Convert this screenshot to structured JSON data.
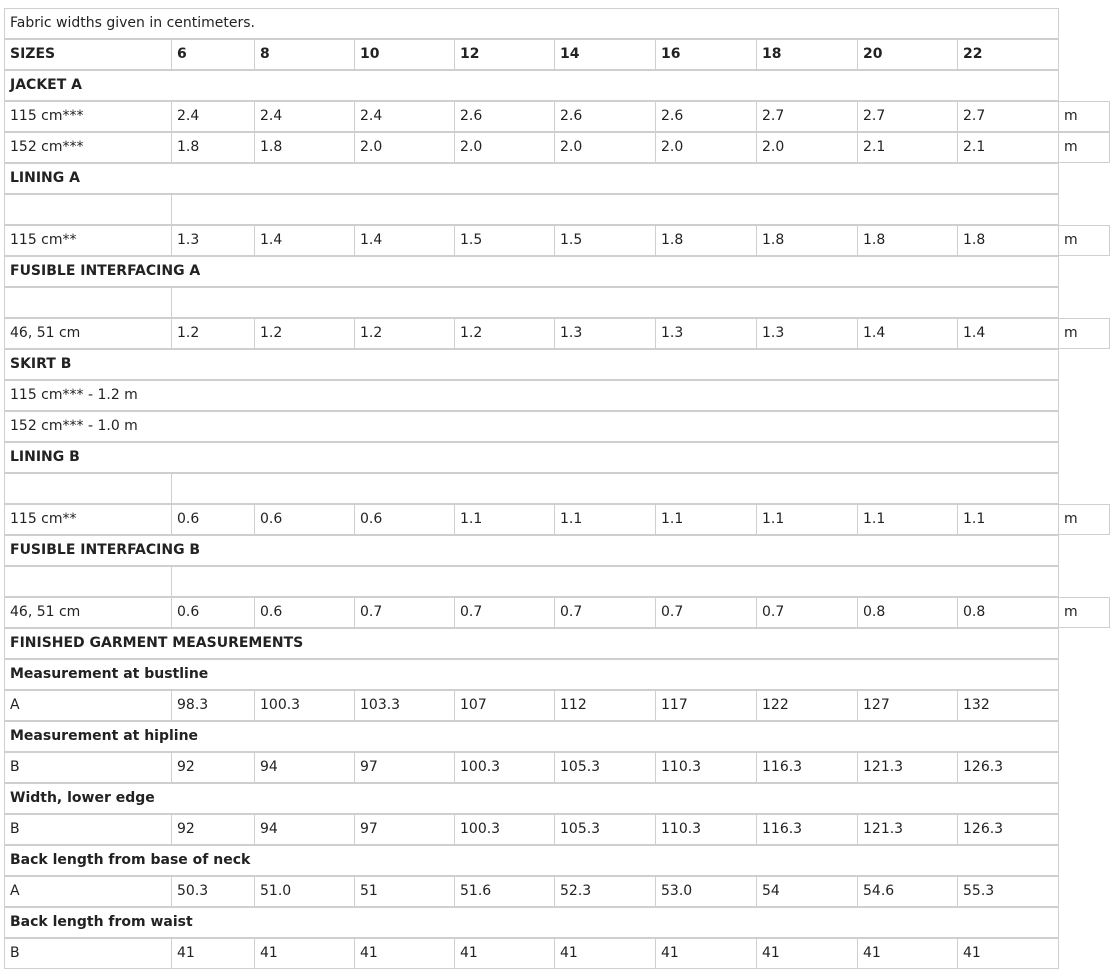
{
  "note": "Fabric widths given in centimeters.",
  "sizes_label": "SIZES",
  "sizes": [
    "6",
    "8",
    "10",
    "12",
    "14",
    "16",
    "18",
    "20",
    "22"
  ],
  "unit": "m",
  "sections": [
    {
      "title": "JACKET A",
      "rows": [
        {
          "label": "115 cm***",
          "values": [
            "2.4",
            "2.4",
            "2.4",
            "2.6",
            "2.6",
            "2.6",
            "2.7",
            "2.7",
            "2.7"
          ]
        },
        {
          "label": "152 cm***",
          "values": [
            "1.8",
            "1.8",
            "2.0",
            "2.0",
            "2.0",
            "2.0",
            "2.0",
            "2.1",
            "2.1"
          ]
        }
      ]
    },
    {
      "title": "LINING A",
      "rows": [
        {
          "label": "115 cm**",
          "values": [
            "1.3",
            "1.4",
            "1.4",
            "1.5",
            "1.5",
            "1.8",
            "1.8",
            "1.8",
            "1.8"
          ]
        }
      ]
    },
    {
      "title": "FUSIBLE INTERFACING A",
      "rows": [
        {
          "label": "46, 51 cm",
          "values": [
            "1.2",
            "1.2",
            "1.2",
            "1.2",
            "1.3",
            "1.3",
            "1.3",
            "1.4",
            "1.4"
          ]
        }
      ]
    },
    {
      "title": "SKIRT B",
      "notes": [
        "115 cm*** - 1.2 m",
        "152 cm*** - 1.0 m"
      ]
    },
    {
      "title": "LINING B",
      "rows": [
        {
          "label": "115 cm**",
          "values": [
            "0.6",
            "0.6",
            "0.6",
            "1.1",
            "1.1",
            "1.1",
            "1.1",
            "1.1",
            "1.1"
          ]
        }
      ]
    },
    {
      "title": "FUSIBLE INTERFACING B",
      "rows": [
        {
          "label": "46, 51 cm",
          "values": [
            "0.6",
            "0.6",
            "0.7",
            "0.7",
            "0.7",
            "0.7",
            "0.7",
            "0.8",
            "0.8"
          ]
        }
      ]
    }
  ],
  "finished": {
    "title": "FINISHED GARMENT MEASUREMENTS",
    "groups": [
      {
        "title": "Measurement at bustline",
        "label": "A",
        "values": [
          "98.3",
          "100.3",
          "103.3",
          "107",
          "112",
          "117",
          "122",
          "127",
          "132"
        ]
      },
      {
        "title": "Measurement at hipline",
        "label": "B",
        "values": [
          "92",
          "94",
          "97",
          "100.3",
          "105.3",
          "110.3",
          "116.3",
          "121.3",
          "126.3"
        ]
      },
      {
        "title": "Width, lower edge",
        "label": "B",
        "values": [
          "92",
          "94",
          "97",
          "100.3",
          "105.3",
          "110.3",
          "116.3",
          "121.3",
          "126.3"
        ]
      },
      {
        "title": "Back length from base of neck",
        "label": "A",
        "values": [
          "50.3",
          "51.0",
          "51",
          "51.6",
          "52.3",
          "53.0",
          "54",
          "54.6",
          "55.3"
        ]
      },
      {
        "title": "Back length from waist",
        "label": "B",
        "values": [
          "41",
          "41",
          "41",
          "41",
          "41",
          "41",
          "41",
          "41",
          "41"
        ]
      }
    ]
  }
}
